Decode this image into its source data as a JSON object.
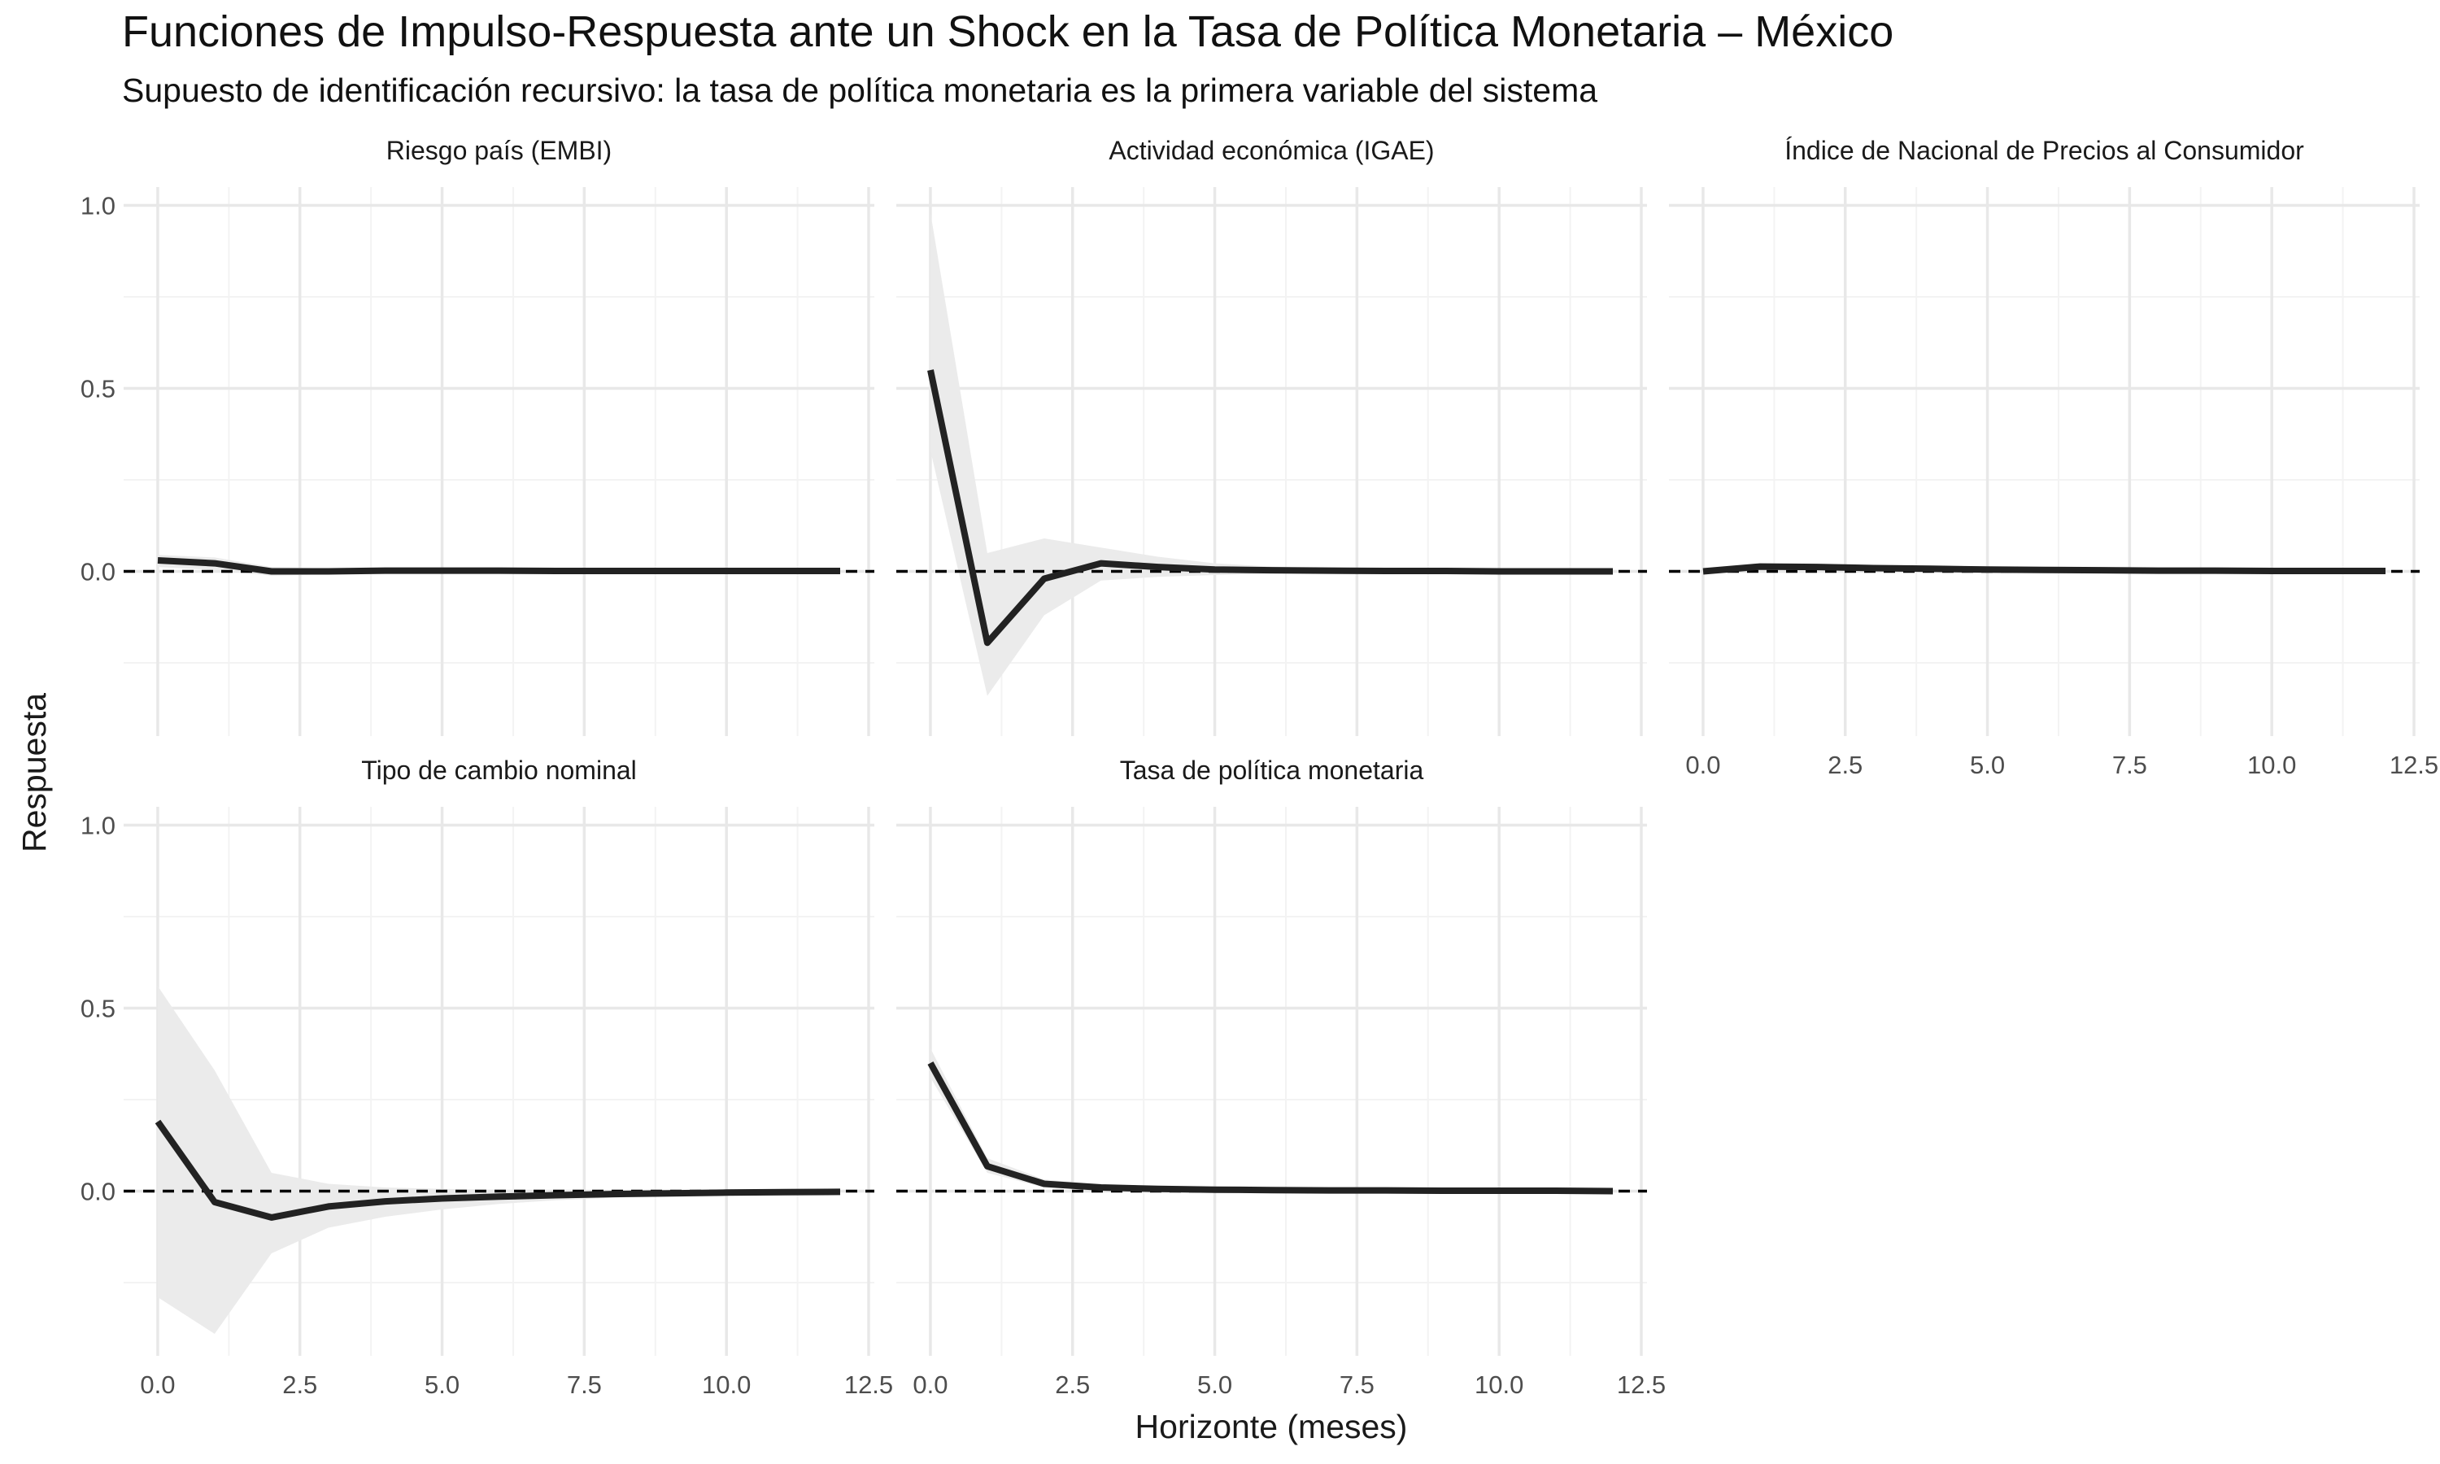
{
  "chart_data": {
    "type": "line",
    "title": "Funciones de Impulso-Respuesta ante un Shock en la Tasa de Política Monetaria – México",
    "subtitle": "Supuesto de identificación recursivo: la tasa de política monetaria es la primera variable del sistema",
    "xlabel": "Horizonte (meses)",
    "ylabel": "Respuesta",
    "xlim": [
      -0.6,
      12.6
    ],
    "ylim": [
      -0.45,
      1.05
    ],
    "xticks": [
      0,
      2.5,
      5,
      7.5,
      10,
      12.5
    ],
    "xtick_labels": [
      "0.0",
      "2.5",
      "5.0",
      "7.5",
      "10.0",
      "12.5"
    ],
    "yticks": [
      0,
      0.5,
      1
    ],
    "ytick_labels": [
      "0.0",
      "0.5",
      "1.0"
    ],
    "x": [
      0,
      1,
      2,
      3,
      4,
      5,
      6,
      7,
      8,
      9,
      10,
      11,
      12
    ],
    "reference_line": {
      "y": 0,
      "style": "dashed"
    },
    "panels": [
      {
        "title": "Riesgo país (EMBI)",
        "values": [
          0.03,
          0.022,
          0.0,
          0.0,
          0.002,
          0.002,
          0.002,
          0.001,
          0.001,
          0.001,
          0.001,
          0.001,
          0.001
        ],
        "lower": [
          0.012,
          0.004,
          -0.012,
          -0.008,
          -0.004,
          -0.003,
          -0.002,
          -0.002,
          -0.001,
          -0.001,
          -0.001,
          -0.001,
          -0.001
        ],
        "upper": [
          0.045,
          0.038,
          0.012,
          0.008,
          0.006,
          0.005,
          0.004,
          0.003,
          0.003,
          0.002,
          0.002,
          0.002,
          0.002
        ]
      },
      {
        "title": "Actividad económica (IGAE)",
        "values": [
          0.55,
          -0.195,
          -0.02,
          0.022,
          0.012,
          0.005,
          0.003,
          0.002,
          0.001,
          0.001,
          0.0,
          0.0,
          0.0
        ],
        "lower": [
          0.33,
          -0.34,
          -0.12,
          -0.025,
          -0.015,
          -0.01,
          -0.006,
          -0.004,
          -0.003,
          -0.002,
          -0.001,
          -0.001,
          -0.001
        ],
        "upper": [
          0.98,
          0.05,
          0.09,
          0.065,
          0.04,
          0.022,
          0.013,
          0.008,
          0.005,
          0.003,
          0.002,
          0.001,
          0.001
        ]
      },
      {
        "title": "Índice de Nacional de Precios al Consumidor",
        "values": [
          0.0,
          0.013,
          0.012,
          0.009,
          0.007,
          0.005,
          0.004,
          0.003,
          0.002,
          0.002,
          0.001,
          0.001,
          0.001
        ],
        "lower": [
          -0.002,
          0.003,
          0.003,
          0.002,
          0.001,
          0.001,
          0.0,
          0.0,
          0.0,
          0.0,
          0.0,
          0.0,
          0.0
        ],
        "upper": [
          0.002,
          0.023,
          0.021,
          0.016,
          0.012,
          0.009,
          0.007,
          0.005,
          0.004,
          0.003,
          0.002,
          0.002,
          0.002
        ]
      },
      {
        "title": "Tipo de cambio nominal",
        "values": [
          0.19,
          -0.03,
          -0.072,
          -0.042,
          -0.028,
          -0.02,
          -0.015,
          -0.011,
          -0.008,
          -0.006,
          -0.004,
          -0.003,
          -0.002
        ],
        "lower": [
          -0.29,
          -0.39,
          -0.17,
          -0.1,
          -0.07,
          -0.05,
          -0.035,
          -0.025,
          -0.018,
          -0.013,
          -0.009,
          -0.007,
          -0.005
        ],
        "upper": [
          0.56,
          0.33,
          0.05,
          0.02,
          0.01,
          0.006,
          0.004,
          0.003,
          0.002,
          0.002,
          0.001,
          0.001,
          0.001
        ]
      },
      {
        "title": "Tasa de política monetaria",
        "values": [
          0.35,
          0.068,
          0.02,
          0.01,
          0.006,
          0.004,
          0.003,
          0.002,
          0.002,
          0.001,
          0.001,
          0.001,
          0.0
        ],
        "lower": [
          0.31,
          0.05,
          0.01,
          0.004,
          0.002,
          0.001,
          0.0,
          0.0,
          0.0,
          0.0,
          0.0,
          0.0,
          0.0
        ],
        "upper": [
          0.39,
          0.09,
          0.032,
          0.018,
          0.011,
          0.007,
          0.005,
          0.004,
          0.003,
          0.002,
          0.002,
          0.001,
          0.001
        ]
      }
    ]
  },
  "colors": {
    "line": "#222222",
    "band": "#ebebeb",
    "grid_major": "#e8e8e8",
    "grid_minor": "#f3f3f3",
    "text": "#1a1a1a",
    "tick_text": "#4d4d4d"
  }
}
